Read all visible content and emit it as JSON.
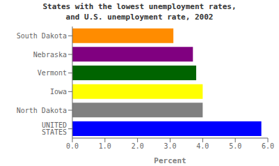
{
  "chart_data": {
    "type": "bar",
    "orientation": "horizontal",
    "title": "States with the lowest unemployment rates,\nand U.S. unemployment rate, 2002",
    "categories": [
      "UNITED STATES",
      "North Dakota",
      "Iowa",
      "Vermont",
      "Nebraska",
      "South Dakota"
    ],
    "values": [
      5.8,
      4.0,
      4.0,
      3.8,
      3.7,
      3.1
    ],
    "colors": [
      "#0000ff",
      "#808080",
      "#ffff00",
      "#006400",
      "#800080",
      "#ff8c00"
    ],
    "xlabel": "Percent",
    "xlim": [
      0,
      6.0
    ],
    "xticks": [
      {
        "value": 0.0,
        "label": "0.0"
      },
      {
        "value": 1.0,
        "label": "1.0"
      },
      {
        "value": 2.0,
        "label": "2.0"
      },
      {
        "value": 3.0,
        "label": "3.0"
      },
      {
        "value": 4.0,
        "label": "4.0"
      },
      {
        "value": 5.0,
        "label": "5.0"
      },
      {
        "value": 6.0,
        "label": "6.0"
      }
    ],
    "grid": false
  }
}
